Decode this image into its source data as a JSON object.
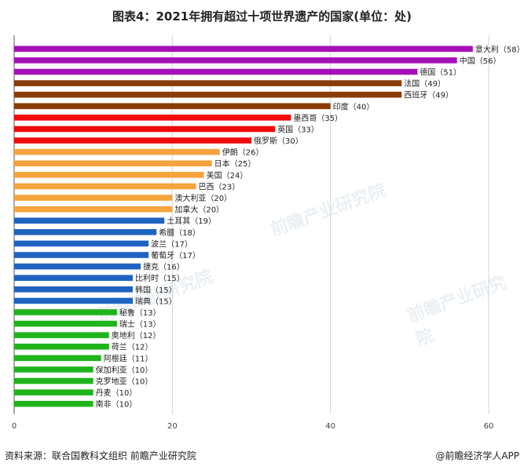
{
  "title": "图表4：2021年拥有超过十项世界遗产的国家(单位：处)",
  "footer": {
    "source": "资料来源：联合国教科文组织 前瞻产业研究院",
    "brand": "@前瞻经济学人APP"
  },
  "watermark": {
    "text": "前瞻产业研究院"
  },
  "colors": {
    "purple": "#a610b8",
    "brown": "#8a3c08",
    "red": "#f00a0a",
    "orange": "#f5a33c",
    "blue": "#1f63c1",
    "green": "#20b41c"
  },
  "chart_data": {
    "type": "bar",
    "orientation": "horizontal",
    "xlim": [
      0,
      60
    ],
    "xticks": [
      0,
      20,
      40,
      60
    ],
    "grid": true,
    "categories": [
      "意大利",
      "中国",
      "德国",
      "法国",
      "西班牙",
      "印度",
      "墨西哥",
      "英国",
      "俄罗斯",
      "伊朗",
      "日本",
      "美国",
      "巴西",
      "澳大利亚",
      "加拿大",
      "土耳其",
      "希腊",
      "波兰",
      "葡萄牙",
      "捷克",
      "比利时",
      "韩国",
      "瑞典",
      "秘鲁",
      "瑞士",
      "奥地利",
      "荷兰",
      "阿根廷",
      "保加利亚",
      "克罗地亚",
      "丹麦",
      "南非"
    ],
    "values": [
      58,
      56,
      51,
      49,
      49,
      40,
      35,
      33,
      30,
      26,
      25,
      24,
      23,
      20,
      20,
      19,
      18,
      17,
      17,
      16,
      15,
      15,
      15,
      13,
      13,
      12,
      12,
      11,
      10,
      10,
      10,
      10
    ],
    "bar_colors": [
      "#a610b8",
      "#a610b8",
      "#a610b8",
      "#8a3c08",
      "#8a3c08",
      "#8a3c08",
      "#f00a0a",
      "#f00a0a",
      "#f00a0a",
      "#f5a33c",
      "#f5a33c",
      "#f5a33c",
      "#f5a33c",
      "#f5a33c",
      "#f5a33c",
      "#1f63c1",
      "#1f63c1",
      "#1f63c1",
      "#1f63c1",
      "#1f63c1",
      "#1f63c1",
      "#1f63c1",
      "#1f63c1",
      "#20b41c",
      "#20b41c",
      "#20b41c",
      "#20b41c",
      "#20b41c",
      "#20b41c",
      "#20b41c",
      "#20b41c",
      "#20b41c"
    ]
  }
}
